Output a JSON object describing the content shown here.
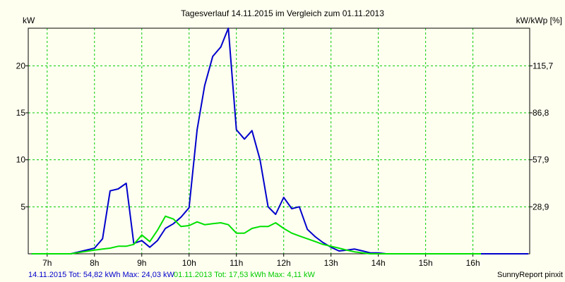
{
  "chart_data": {
    "type": "line",
    "title": "Tagesverlauf 14.11.2015 im Vergleich zum 01.11.2013",
    "ylabel_left": "kW",
    "ylabel_right": "kW/kWp [%]",
    "xlim": [
      6.6,
      17.2
    ],
    "ylim": [
      0,
      24
    ],
    "y_ticks_left": [
      {
        "value": 5,
        "label": "5"
      },
      {
        "value": 10,
        "label": "10"
      },
      {
        "value": 15,
        "label": "15"
      },
      {
        "value": 20,
        "label": "20"
      }
    ],
    "y_ticks_right": [
      {
        "value": 5,
        "label": "28,9"
      },
      {
        "value": 10,
        "label": "57,9"
      },
      {
        "value": 15,
        "label": "86,8"
      },
      {
        "value": 20,
        "label": "115,7"
      }
    ],
    "x_ticks": [
      {
        "value": 7,
        "label": "7h"
      },
      {
        "value": 8,
        "label": "8h"
      },
      {
        "value": 9,
        "label": "9h"
      },
      {
        "value": 10,
        "label": "10h"
      },
      {
        "value": 11,
        "label": "11h"
      },
      {
        "value": 12,
        "label": "12h"
      },
      {
        "value": 13,
        "label": "13h"
      },
      {
        "value": 14,
        "label": "14h"
      },
      {
        "value": 15,
        "label": "15h"
      },
      {
        "value": 16,
        "label": "16h"
      }
    ],
    "grid": true,
    "series": [
      {
        "name": "14.11.2015",
        "color": "#0000cc",
        "x": [
          6.67,
          7.0,
          7.25,
          7.5,
          7.75,
          8.0,
          8.17,
          8.33,
          8.5,
          8.67,
          8.83,
          9.0,
          9.17,
          9.33,
          9.5,
          9.67,
          9.83,
          10.0,
          10.17,
          10.33,
          10.5,
          10.67,
          10.83,
          11.0,
          11.17,
          11.33,
          11.5,
          11.67,
          11.83,
          12.0,
          12.17,
          12.33,
          12.5,
          12.67,
          12.83,
          13.0,
          13.17,
          13.33,
          13.5,
          13.67,
          13.83,
          14.0,
          14.17,
          14.33,
          14.5,
          14.67,
          14.83,
          15.0,
          15.17,
          15.33,
          15.5,
          15.67,
          15.83,
          16.0,
          16.17,
          16.33,
          16.5,
          16.67,
          16.83,
          17.0,
          17.17
        ],
        "y": [
          0,
          0,
          0,
          0,
          0.3,
          0.6,
          1.6,
          6.7,
          6.9,
          7.5,
          1.1,
          1.4,
          0.7,
          1.4,
          2.7,
          3.2,
          3.9,
          4.9,
          13.2,
          17.9,
          21.0,
          22.0,
          24.0,
          13.2,
          12.2,
          13.1,
          10.0,
          5.0,
          4.2,
          6.0,
          4.8,
          5.0,
          2.6,
          1.8,
          1.2,
          0.7,
          0.3,
          0.4,
          0.5,
          0.3,
          0.1,
          0.1,
          0,
          0,
          0,
          0,
          0,
          0,
          0,
          0,
          0,
          0,
          0,
          0,
          0,
          0,
          0,
          0,
          0,
          0,
          0
        ]
      },
      {
        "name": "01.11.2013",
        "color": "#00e000",
        "x": [
          6.67,
          7.0,
          7.25,
          7.5,
          7.75,
          8.0,
          8.17,
          8.33,
          8.5,
          8.67,
          8.83,
          9.0,
          9.17,
          9.33,
          9.5,
          9.67,
          9.83,
          10.0,
          10.17,
          10.33,
          10.5,
          10.67,
          10.83,
          11.0,
          11.17,
          11.33,
          11.5,
          11.67,
          11.83,
          12.0,
          12.17,
          12.33,
          12.5,
          12.67,
          12.83,
          13.0,
          13.17,
          13.33,
          13.5,
          13.67,
          13.83,
          14.0,
          14.17,
          14.33,
          14.5,
          14.67,
          14.83,
          15.0,
          15.17,
          15.33,
          15.5,
          15.67,
          15.83,
          16.0,
          16.17
        ],
        "y": [
          0,
          0,
          0,
          0,
          0.2,
          0.4,
          0.5,
          0.6,
          0.8,
          0.8,
          1.0,
          2.0,
          1.3,
          2.5,
          4.0,
          3.7,
          2.9,
          3.0,
          3.4,
          3.1,
          3.2,
          3.3,
          3.1,
          2.2,
          2.2,
          2.7,
          2.9,
          2.9,
          3.3,
          2.7,
          2.2,
          1.9,
          1.6,
          1.3,
          1.0,
          0.8,
          0.6,
          0.4,
          0.2,
          0.1,
          0,
          0,
          0,
          0,
          0,
          0,
          0,
          0,
          0,
          0,
          0,
          0,
          0,
          0,
          0
        ]
      }
    ]
  },
  "footer": {
    "series1_text": "14.11.2015 Tot: 54,82 kWh Max: 24,03 kW",
    "series2_text": "01.11.2013 Tot: 17,53 kWh Max: 4,11 kW",
    "credit": "SunnyReport pinxit"
  },
  "colors": {
    "background": "#fffff0",
    "grid": "#00cc00",
    "axis": "#000000",
    "series1": "#0000cc",
    "series2": "#00e000"
  }
}
